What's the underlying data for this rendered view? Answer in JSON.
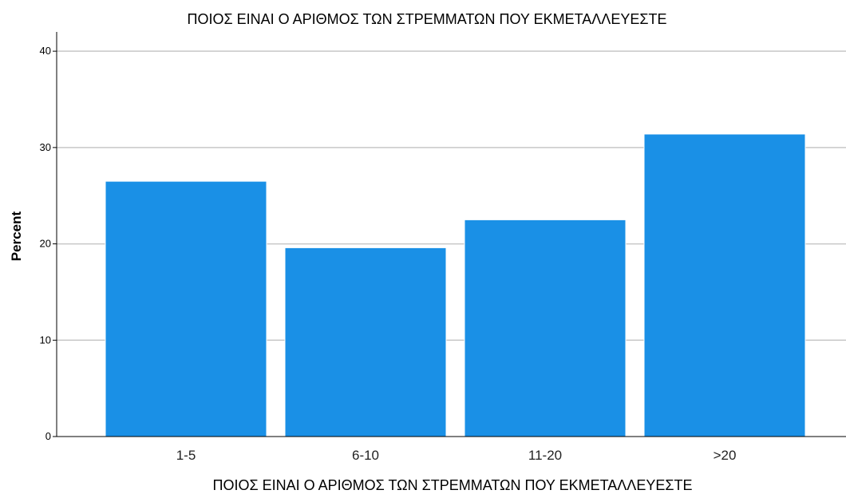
{
  "chart_data": {
    "type": "bar",
    "title": "ΠΟΙΟΣ ΕΙΝΑΙ Ο ΑΡΙΘΜΟΣ ΤΩΝ ΣΤΡΕΜΜΑΤΩΝ ΠΟΥ ΕΚΜΕΤΑΛΛΕΥΕΣΤΕ",
    "xlabel": "ΠΟΙΟΣ ΕΙΝΑΙ Ο ΑΡΙΘΜΟΣ ΤΩΝ ΣΤΡΕΜΜΑΤΩΝ ΠΟΥ ΕΚΜΕΤΑΛΛΕΥΕΣΤΕ",
    "ylabel": "Percent",
    "categories": [
      "1-5",
      "6-10",
      "11-20",
      ">20"
    ],
    "values": [
      26.5,
      19.6,
      22.5,
      31.4
    ],
    "ylim": [
      0,
      42
    ],
    "yticks": [
      "0",
      "10",
      "20",
      "30",
      "40"
    ],
    "grid": true,
    "bar_color": "#1a90e6"
  }
}
